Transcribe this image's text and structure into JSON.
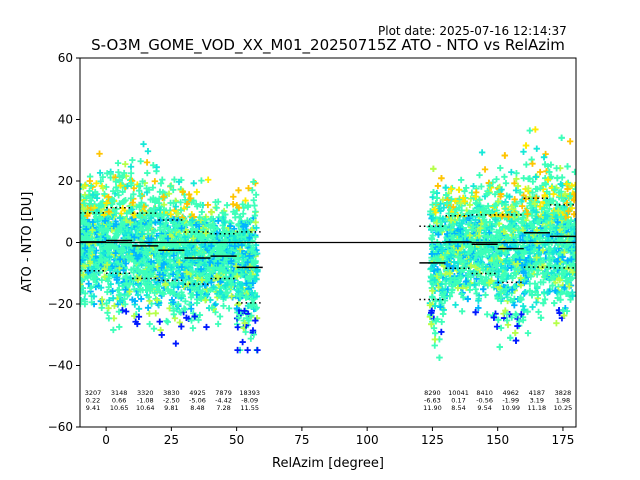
{
  "plot_date": "Plot date: 2025-07-16 12:14:37",
  "chart_data": {
    "type": "scatter",
    "title": "S-O3M_GOME_VOD_XX_M01_20250715Z ATO - NTO vs RelAzim",
    "xlabel": "RelAzim [degree]",
    "ylabel": "ATO - NTO [DU]",
    "xlim": [
      -10,
      180
    ],
    "ylim": [
      -60,
      60
    ],
    "xticks": [
      0,
      25,
      50,
      75,
      100,
      125,
      150,
      175
    ],
    "yticks": [
      -60,
      -40,
      -20,
      0,
      20,
      40,
      60
    ],
    "grid": false,
    "marker": "+",
    "colors": {
      "dense": "#3dffb9",
      "teal": "#16e8d8",
      "sky": "#00b4ff",
      "yellowgreen": "#b6ff4a",
      "yellow": "#ffea00",
      "orange": "#ffc400",
      "blue": "#0019ff"
    },
    "zero_line": 0,
    "point_clusters": [
      {
        "x_range": [
          -10,
          58
        ],
        "y_range": [
          -35,
          32
        ]
      },
      {
        "x_range": [
          124,
          180
        ],
        "y_range": [
          -42,
          42
        ]
      }
    ],
    "bins": [
      {
        "x": [
          -10,
          0
        ],
        "count": "3207",
        "mean": "0.22",
        "std": "9.41"
      },
      {
        "x": [
          0,
          10
        ],
        "count": "3148",
        "mean": "0.66",
        "std": "10.65"
      },
      {
        "x": [
          10,
          20
        ],
        "count": "3320",
        "mean": "-1.08",
        "std": "10.64"
      },
      {
        "x": [
          20,
          30
        ],
        "count": "3830",
        "mean": "-2.50",
        "std": "9.81"
      },
      {
        "x": [
          30,
          40
        ],
        "count": "4925",
        "mean": "-5.06",
        "std": "8.48"
      },
      {
        "x": [
          40,
          50
        ],
        "count": "7879",
        "mean": "-4.42",
        "std": "7.28"
      },
      {
        "x": [
          50,
          60
        ],
        "count": "18393",
        "mean": "-8.09",
        "std": "11.55"
      },
      {
        "x": [
          120,
          130
        ],
        "count": "8290",
        "mean": "-6.63",
        "std": "11.90"
      },
      {
        "x": [
          130,
          140
        ],
        "count": "10041",
        "mean": "0.17",
        "std": "8.54"
      },
      {
        "x": [
          140,
          150
        ],
        "count": "8410",
        "mean": "-0.56",
        "std": "9.54"
      },
      {
        "x": [
          150,
          160
        ],
        "count": "4962",
        "mean": "-1.99",
        "std": "10.99"
      },
      {
        "x": [
          160,
          170
        ],
        "count": "4187",
        "mean": "3.19",
        "std": "11.18"
      },
      {
        "x": [
          170,
          180
        ],
        "count": "3828",
        "mean": "1.98",
        "std": "10.25"
      }
    ]
  }
}
